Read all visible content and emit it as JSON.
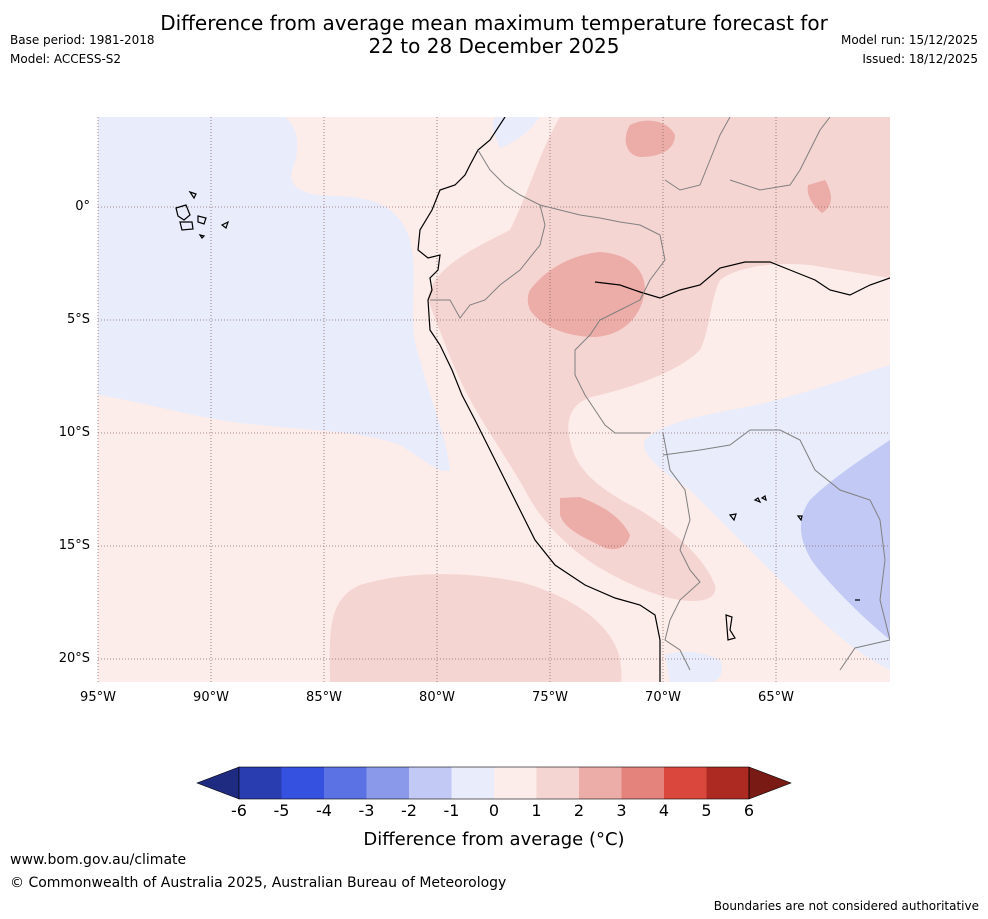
{
  "title": {
    "line1": "Difference from average mean maximum temperature forecast for",
    "line2": "22 to 28 December 2025"
  },
  "meta": {
    "base_period": "Base period: 1981-2018",
    "model": "Model: ACCESS-S2",
    "model_run": "Model run: 15/12/2025",
    "issued": "Issued: 18/12/2025"
  },
  "map": {
    "lat_labels": [
      "0°",
      "5°S",
      "10°S",
      "15°S",
      "20°S"
    ],
    "lon_labels": [
      "95°W",
      "90°W",
      "85°W",
      "80°W",
      "75°W",
      "70°W",
      "65°W"
    ]
  },
  "colorbar": {
    "ticks": [
      "-6",
      "-5",
      "-4",
      "-3",
      "-2",
      "-1",
      "0",
      "1",
      "2",
      "3",
      "4",
      "5",
      "6"
    ],
    "colors": [
      "#1e2b80",
      "#2a3db0",
      "#3451e0",
      "#5a72e4",
      "#8a99ea",
      "#c2c9f4",
      "#e8ecfb",
      "#fcecea",
      "#f5d5d2",
      "#ecaca7",
      "#e3837b",
      "#d9473d",
      "#ad2a22",
      "#7a1a15"
    ],
    "label": "Difference from average (°C)"
  },
  "footer": {
    "url": "www.bom.gov.au/climate",
    "copyright": "© Commonwealth of Australia 2025, Australian Bureau of Meteorology",
    "disclaimer": "Boundaries are not considered authoritative"
  }
}
